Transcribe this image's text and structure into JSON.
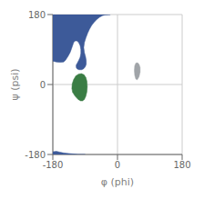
{
  "chart_data": {
    "type": "polygon",
    "title": "",
    "xlabel": "φ (phi)",
    "ylabel": "ψ (psi)",
    "xlim": [
      -180,
      180
    ],
    "ylim": [
      -180,
      180
    ],
    "xticks": [
      -180,
      0,
      180
    ],
    "yticks": [
      -180,
      0,
      180
    ],
    "grid": true,
    "series": [
      {
        "color": "#3d5a99",
        "values": [
          [
            -180,
            180
          ],
          [
            -180,
            60
          ],
          [
            -170,
            58
          ],
          [
            -160,
            57
          ],
          [
            -150,
            58
          ],
          [
            -145,
            62
          ],
          [
            -138,
            72
          ],
          [
            -132,
            82
          ],
          [
            -128,
            92
          ],
          [
            -125,
            100
          ],
          [
            -122,
            108
          ],
          [
            -118,
            112
          ],
          [
            -113,
            112
          ],
          [
            -108,
            108
          ],
          [
            -104,
            100
          ],
          [
            -102,
            90
          ],
          [
            -102,
            80
          ],
          [
            -104,
            70
          ],
          [
            -108,
            62
          ],
          [
            -112,
            55
          ],
          [
            -115,
            50
          ],
          [
            -115,
            44
          ],
          [
            -112,
            40
          ],
          [
            -107,
            38
          ],
          [
            -100,
            38
          ],
          [
            -95,
            40
          ],
          [
            -90,
            45
          ],
          [
            -87,
            52
          ],
          [
            -87,
            62
          ],
          [
            -89,
            72
          ],
          [
            -92,
            82
          ],
          [
            -94,
            95
          ],
          [
            -92,
            108
          ],
          [
            -88,
            120
          ],
          [
            -83,
            132
          ],
          [
            -78,
            142
          ],
          [
            -72,
            152
          ],
          [
            -65,
            160
          ],
          [
            -58,
            167
          ],
          [
            -50,
            173
          ],
          [
            -42,
            177
          ],
          [
            -35,
            179
          ],
          [
            -20,
            180
          ],
          [
            -180,
            180
          ]
        ]
      },
      {
        "color": "#3d5a99",
        "values": [
          [
            -180,
            -180
          ],
          [
            -180,
            -173
          ],
          [
            -170,
            -172
          ],
          [
            -160,
            -174
          ],
          [
            -150,
            -176
          ],
          [
            -140,
            -177
          ],
          [
            -130,
            -178
          ],
          [
            -120,
            -179
          ],
          [
            -110,
            -180
          ],
          [
            -100,
            -180
          ],
          [
            -90,
            -180
          ],
          [
            -180,
            -180
          ]
        ]
      },
      {
        "color": "#3a7d44",
        "values": [
          [
            -125,
            -20
          ],
          [
            -118,
            -30
          ],
          [
            -110,
            -38
          ],
          [
            -103,
            -42
          ],
          [
            -97,
            -42
          ],
          [
            -92,
            -38
          ],
          [
            -88,
            -30
          ],
          [
            -85,
            -18
          ],
          [
            -84,
            -5
          ],
          [
            -85,
            8
          ],
          [
            -88,
            18
          ],
          [
            -93,
            25
          ],
          [
            -100,
            28
          ],
          [
            -108,
            27
          ],
          [
            -116,
            22
          ],
          [
            -122,
            13
          ],
          [
            -126,
            2
          ],
          [
            -127,
            -10
          ],
          [
            -125,
            -20
          ]
        ]
      },
      {
        "color": "#a0a4a8",
        "values": [
          [
            55,
            12
          ],
          [
            60,
            20
          ],
          [
            63,
            32
          ],
          [
            63,
            44
          ],
          [
            60,
            52
          ],
          [
            56,
            56
          ],
          [
            51,
            55
          ],
          [
            48,
            48
          ],
          [
            47,
            36
          ],
          [
            48,
            24
          ],
          [
            51,
            14
          ],
          [
            55,
            12
          ]
        ]
      }
    ]
  }
}
